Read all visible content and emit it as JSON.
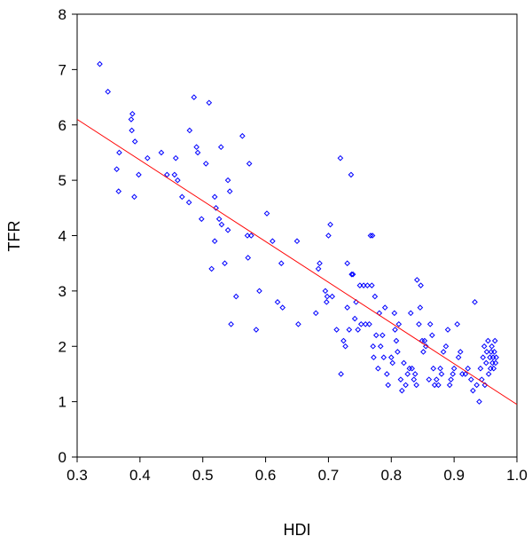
{
  "chart_data": {
    "type": "scatter",
    "title": "",
    "xlabel": "HDI",
    "ylabel": "TFR",
    "xlim": [
      0.3,
      1.0
    ],
    "ylim": [
      0,
      8
    ],
    "x_ticks": [
      "0.3",
      "0.4",
      "0.5",
      "0.6",
      "0.7",
      "0.8",
      "0.9",
      "1.0"
    ],
    "y_ticks": [
      "0",
      "1",
      "2",
      "3",
      "4",
      "5",
      "6",
      "7",
      "8"
    ],
    "grid": false,
    "colors": {
      "points": "#0000ff",
      "fit_line": "#ff0000",
      "axes": "#000000"
    },
    "series": [
      {
        "values": [
          [
            0.336,
            7.1
          ],
          [
            0.349,
            6.6
          ],
          [
            0.363,
            5.2
          ],
          [
            0.367,
            5.5
          ],
          [
            0.366,
            4.8
          ],
          [
            0.386,
            6.1
          ],
          [
            0.388,
            6.2
          ],
          [
            0.387,
            5.9
          ],
          [
            0.392,
            5.7
          ],
          [
            0.391,
            4.7
          ],
          [
            0.398,
            5.1
          ],
          [
            0.412,
            5.4
          ],
          [
            0.434,
            5.5
          ],
          [
            0.443,
            5.1
          ],
          [
            0.455,
            5.1
          ],
          [
            0.457,
            5.4
          ],
          [
            0.46,
            5.0
          ],
          [
            0.467,
            4.7
          ],
          [
            0.479,
            5.9
          ],
          [
            0.478,
            4.6
          ],
          [
            0.486,
            6.5
          ],
          [
            0.49,
            5.6
          ],
          [
            0.492,
            5.5
          ],
          [
            0.498,
            4.3
          ],
          [
            0.505,
            5.3
          ],
          [
            0.51,
            6.4
          ],
          [
            0.514,
            3.4
          ],
          [
            0.519,
            4.7
          ],
          [
            0.521,
            4.5
          ],
          [
            0.519,
            3.9
          ],
          [
            0.526,
            4.3
          ],
          [
            0.529,
            5.6
          ],
          [
            0.53,
            4.2
          ],
          [
            0.535,
            3.5
          ],
          [
            0.54,
            5.0
          ],
          [
            0.54,
            4.1
          ],
          [
            0.543,
            4.8
          ],
          [
            0.545,
            2.4
          ],
          [
            0.553,
            2.9
          ],
          [
            0.563,
            5.8
          ],
          [
            0.571,
            4.0
          ],
          [
            0.572,
            3.6
          ],
          [
            0.574,
            5.3
          ],
          [
            0.577,
            4.0
          ],
          [
            0.585,
            2.3
          ],
          [
            0.59,
            3.0
          ],
          [
            0.602,
            4.4
          ],
          [
            0.611,
            3.9
          ],
          [
            0.619,
            2.8
          ],
          [
            0.625,
            3.5
          ],
          [
            0.627,
            2.7
          ],
          [
            0.65,
            3.9
          ],
          [
            0.652,
            2.4
          ],
          [
            0.68,
            2.6
          ],
          [
            0.684,
            3.4
          ],
          [
            0.686,
            3.5
          ],
          [
            0.695,
            3.0
          ],
          [
            0.698,
            2.9
          ],
          [
            0.697,
            2.8
          ],
          [
            0.7,
            4.0
          ],
          [
            0.703,
            4.2
          ],
          [
            0.706,
            2.9
          ],
          [
            0.713,
            2.3
          ],
          [
            0.719,
            5.4
          ],
          [
            0.72,
            1.5
          ],
          [
            0.724,
            2.1
          ],
          [
            0.727,
            2.0
          ],
          [
            0.73,
            3.5
          ],
          [
            0.73,
            2.7
          ],
          [
            0.733,
            2.3
          ],
          [
            0.736,
            5.1
          ],
          [
            0.737,
            3.3
          ],
          [
            0.739,
            3.3
          ],
          [
            0.742,
            2.5
          ],
          [
            0.744,
            2.8
          ],
          [
            0.747,
            2.3
          ],
          [
            0.75,
            3.1
          ],
          [
            0.752,
            2.4
          ],
          [
            0.756,
            3.1
          ],
          [
            0.759,
            2.4
          ],
          [
            0.762,
            3.1
          ],
          [
            0.765,
            2.4
          ],
          [
            0.767,
            4.0
          ],
          [
            0.769,
            3.1
          ],
          [
            0.77,
            4.0
          ],
          [
            0.771,
            2.0
          ],
          [
            0.772,
            1.8
          ],
          [
            0.774,
            2.9
          ],
          [
            0.776,
            2.2
          ],
          [
            0.779,
            1.6
          ],
          [
            0.781,
            2.6
          ],
          [
            0.783,
            2.0
          ],
          [
            0.786,
            2.2
          ],
          [
            0.788,
            1.8
          ],
          [
            0.79,
            2.7
          ],
          [
            0.793,
            1.5
          ],
          [
            0.795,
            1.3
          ],
          [
            0.8,
            1.8
          ],
          [
            0.802,
            1.7
          ],
          [
            0.805,
            2.6
          ],
          [
            0.806,
            2.3
          ],
          [
            0.808,
            2.1
          ],
          [
            0.81,
            1.9
          ],
          [
            0.812,
            2.4
          ],
          [
            0.815,
            1.4
          ],
          [
            0.817,
            1.2
          ],
          [
            0.82,
            1.7
          ],
          [
            0.823,
            1.3
          ],
          [
            0.826,
            1.5
          ],
          [
            0.829,
            1.6
          ],
          [
            0.831,
            2.6
          ],
          [
            0.833,
            1.6
          ],
          [
            0.836,
            1.4
          ],
          [
            0.838,
            1.5
          ],
          [
            0.84,
            1.3
          ],
          [
            0.841,
            3.2
          ],
          [
            0.844,
            2.4
          ],
          [
            0.846,
            2.7
          ],
          [
            0.847,
            3.1
          ],
          [
            0.849,
            2.1
          ],
          [
            0.851,
            1.9
          ],
          [
            0.853,
            2.1
          ],
          [
            0.855,
            2.0
          ],
          [
            0.86,
            1.4
          ],
          [
            0.862,
            2.4
          ],
          [
            0.865,
            2.2
          ],
          [
            0.867,
            1.6
          ],
          [
            0.869,
            1.3
          ],
          [
            0.872,
            1.4
          ],
          [
            0.875,
            1.3
          ],
          [
            0.878,
            1.6
          ],
          [
            0.88,
            1.5
          ],
          [
            0.883,
            1.9
          ],
          [
            0.887,
            2.0
          ],
          [
            0.89,
            2.3
          ],
          [
            0.893,
            1.3
          ],
          [
            0.895,
            1.4
          ],
          [
            0.898,
            1.5
          ],
          [
            0.9,
            1.6
          ],
          [
            0.905,
            2.4
          ],
          [
            0.907,
            1.8
          ],
          [
            0.91,
            1.9
          ],
          [
            0.913,
            1.5
          ],
          [
            0.918,
            1.5
          ],
          [
            0.922,
            1.6
          ],
          [
            0.927,
            1.4
          ],
          [
            0.93,
            1.2
          ],
          [
            0.933,
            2.8
          ],
          [
            0.936,
            1.3
          ],
          [
            0.94,
            1.0
          ],
          [
            0.942,
            1.6
          ],
          [
            0.944,
            1.4
          ],
          [
            0.946,
            1.8
          ],
          [
            0.948,
            2.0
          ],
          [
            0.949,
            1.3
          ],
          [
            0.951,
            1.7
          ],
          [
            0.952,
            1.9
          ],
          [
            0.954,
            2.1
          ],
          [
            0.955,
            1.5
          ],
          [
            0.957,
            1.8
          ],
          [
            0.958,
            1.6
          ],
          [
            0.959,
            1.9
          ],
          [
            0.96,
            2.0
          ],
          [
            0.961,
            1.7
          ],
          [
            0.962,
            1.8
          ],
          [
            0.963,
            1.6
          ],
          [
            0.964,
            1.9
          ],
          [
            0.965,
            2.1
          ],
          [
            0.966,
            1.7
          ],
          [
            0.967,
            1.8
          ]
        ]
      }
    ],
    "fit_line": {
      "x": [
        0.3,
        1.0
      ],
      "y": [
        6.1,
        0.95
      ]
    }
  }
}
